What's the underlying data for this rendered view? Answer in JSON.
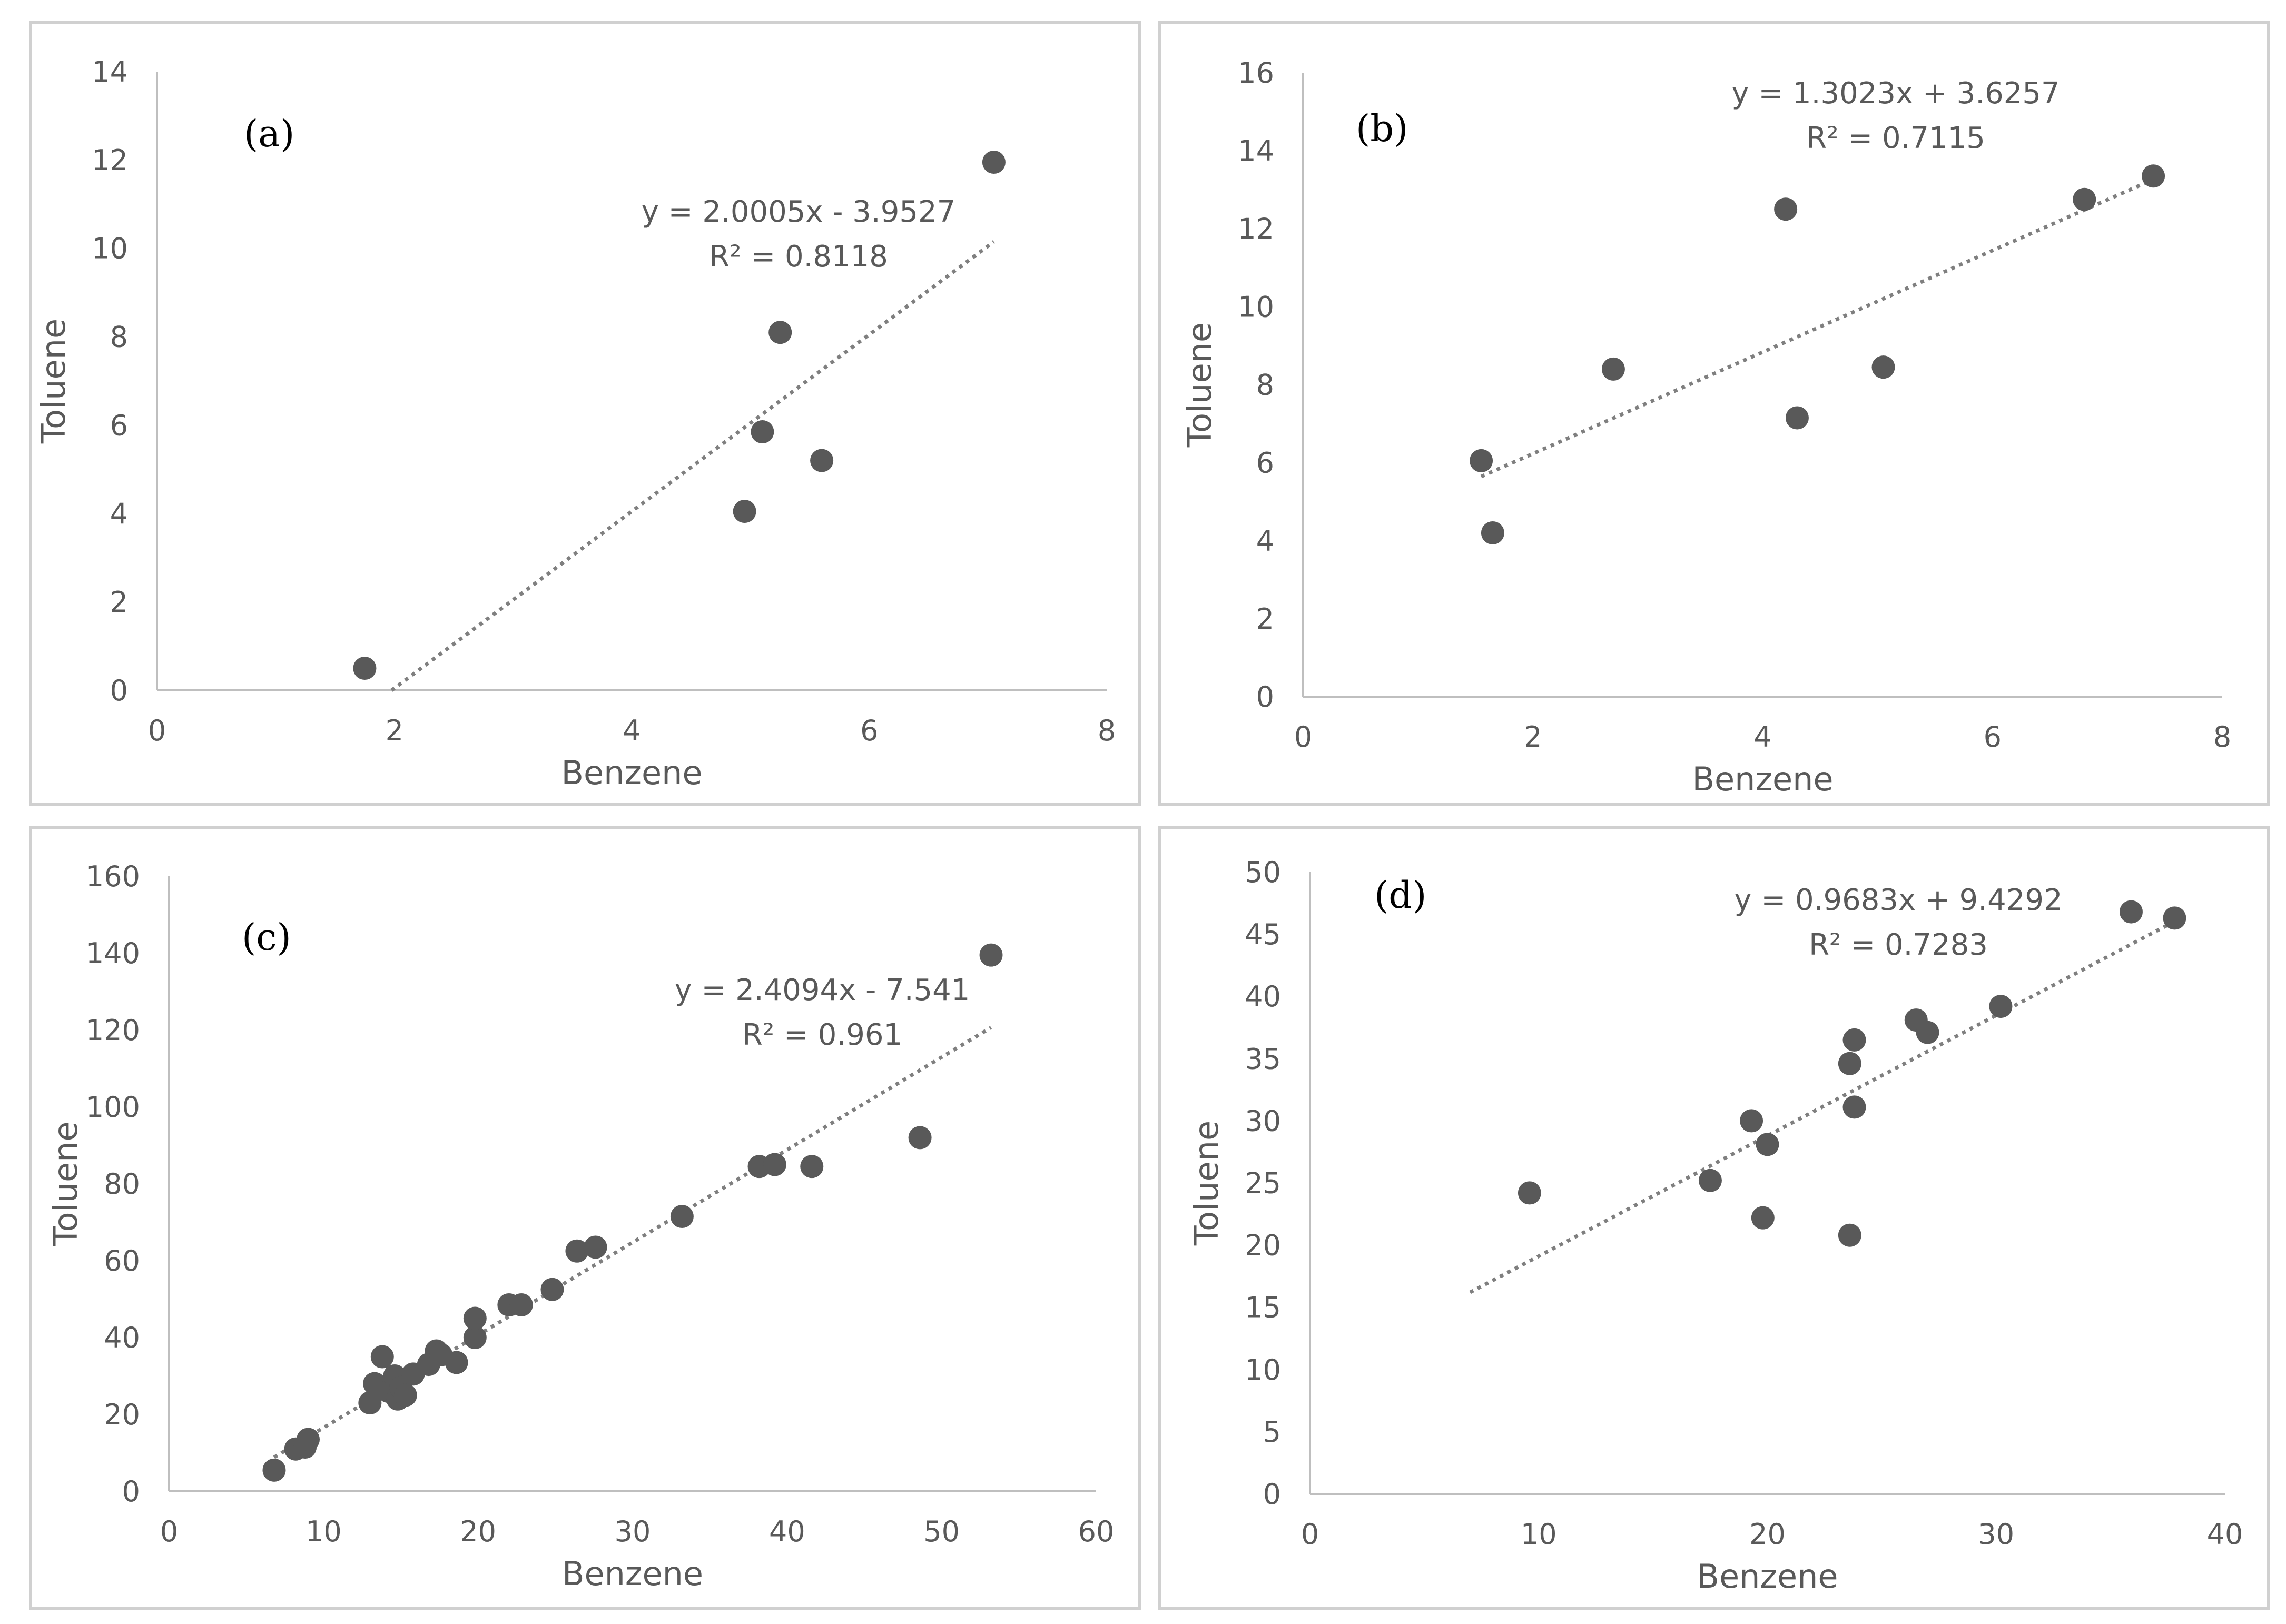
{
  "chart_data": [
    {
      "type": "scatter",
      "panel_label": "(a)",
      "xlabel": "Benzene",
      "ylabel": "Toluene",
      "xlim": [
        0,
        8
      ],
      "ylim": [
        0,
        14
      ],
      "xticks": [
        0,
        2,
        4,
        6,
        8
      ],
      "yticks": [
        0,
        2,
        4,
        6,
        8,
        10,
        12,
        14
      ],
      "grid": false,
      "points": [
        [
          1.75,
          0.5
        ],
        [
          4.95,
          4.05
        ],
        [
          5.1,
          5.85
        ],
        [
          5.25,
          8.1
        ],
        [
          5.6,
          5.2
        ],
        [
          7.05,
          11.95
        ]
      ],
      "trendline": {
        "slope": 2.0005,
        "intercept": -3.9527,
        "x_range": [
          1.976,
          7.05
        ]
      },
      "equation": "y = 2.0005x - 3.9527",
      "r_squared": "R² = 0.8118",
      "marker_color": "#595959",
      "trendline_color": "#7f7f7f"
    },
    {
      "type": "scatter",
      "panel_label": "(b)",
      "xlabel": "Benzene",
      "ylabel": "Toluene",
      "xlim": [
        0,
        8
      ],
      "ylim": [
        0,
        16
      ],
      "xticks": [
        0,
        2,
        4,
        6,
        8
      ],
      "yticks": [
        0,
        2,
        4,
        6,
        8,
        10,
        12,
        14,
        16
      ],
      "grid": false,
      "points": [
        [
          1.55,
          6.05
        ],
        [
          1.65,
          4.2
        ],
        [
          2.7,
          8.4
        ],
        [
          4.2,
          12.5
        ],
        [
          4.3,
          7.15
        ],
        [
          5.05,
          8.45
        ],
        [
          6.8,
          12.75
        ],
        [
          7.4,
          13.35
        ]
      ],
      "trendline": {
        "slope": 1.3023,
        "intercept": 3.6257,
        "x_range": [
          1.55,
          7.4
        ]
      },
      "equation": "y = 1.3023x + 3.6257",
      "r_squared": "R² = 0.7115",
      "marker_color": "#595959",
      "trendline_color": "#7f7f7f"
    },
    {
      "type": "scatter",
      "panel_label": "(c)",
      "xlabel": "Benzene",
      "ylabel": "Toluene",
      "xlim": [
        0,
        60
      ],
      "ylim": [
        0,
        160
      ],
      "xticks": [
        0,
        10,
        20,
        30,
        40,
        50,
        60
      ],
      "yticks": [
        0,
        20,
        40,
        60,
        80,
        100,
        120,
        140,
        160
      ],
      "grid": false,
      "points": [
        [
          6.8,
          5.5
        ],
        [
          8.2,
          11
        ],
        [
          8.8,
          11.5
        ],
        [
          9.0,
          13.5
        ],
        [
          13.0,
          23
        ],
        [
          13.3,
          28
        ],
        [
          13.8,
          35
        ],
        [
          14.2,
          26
        ],
        [
          14.6,
          30
        ],
        [
          14.8,
          24
        ],
        [
          15.0,
          27
        ],
        [
          15.3,
          25
        ],
        [
          15.8,
          30.5
        ],
        [
          16.8,
          33
        ],
        [
          17.3,
          36.5
        ],
        [
          17.6,
          35.5
        ],
        [
          18.6,
          33.5
        ],
        [
          19.8,
          40
        ],
        [
          19.8,
          45
        ],
        [
          22.0,
          48.5
        ],
        [
          22.8,
          48.5
        ],
        [
          24.8,
          52.5
        ],
        [
          26.4,
          62.5
        ],
        [
          27.6,
          63.5
        ],
        [
          33.2,
          71.5
        ],
        [
          38.2,
          84.5
        ],
        [
          39.2,
          85
        ],
        [
          41.6,
          84.5
        ],
        [
          48.6,
          92
        ],
        [
          53.2,
          139.5
        ]
      ],
      "trendline": {
        "slope": 2.4094,
        "intercept": -7.541,
        "x_range": [
          6.8,
          53.2
        ]
      },
      "equation": "y = 2.4094x - 7.541",
      "r_squared": "R² = 0.961",
      "marker_color": "#595959",
      "trendline_color": "#7f7f7f"
    },
    {
      "type": "scatter",
      "panel_label": "(d)",
      "xlabel": "Benzene",
      "ylabel": "Toluene",
      "xlim": [
        0,
        40
      ],
      "ylim": [
        0,
        50
      ],
      "xticks": [
        0,
        10,
        20,
        30,
        40
      ],
      "yticks": [
        0,
        5,
        10,
        15,
        20,
        25,
        30,
        35,
        40,
        45,
        50
      ],
      "grid": false,
      "points": [
        [
          9.6,
          24.2
        ],
        [
          17.5,
          25.2
        ],
        [
          19.3,
          30
        ],
        [
          19.8,
          22.2
        ],
        [
          20.0,
          28.1
        ],
        [
          23.6,
          34.6
        ],
        [
          23.6,
          20.8
        ],
        [
          23.8,
          36.5
        ],
        [
          23.8,
          31.1
        ],
        [
          26.5,
          38.1
        ],
        [
          27.0,
          37.1
        ],
        [
          30.2,
          39.2
        ],
        [
          35.9,
          46.8
        ],
        [
          37.8,
          46.3
        ]
      ],
      "trendline": {
        "slope": 0.9683,
        "intercept": 9.4292,
        "x_range": [
          7.0,
          37.8
        ]
      },
      "equation": "y = 0.9683x + 9.4292",
      "r_squared": "R² = 0.7283",
      "marker_color": "#595959",
      "trendline_color": "#7f7f7f"
    }
  ]
}
